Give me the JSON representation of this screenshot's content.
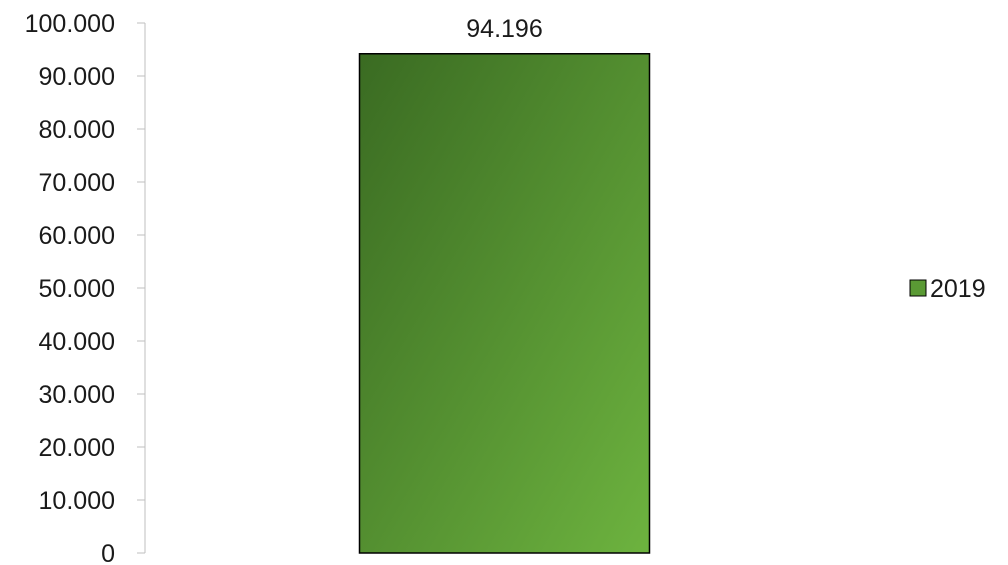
{
  "chart_data": {
    "type": "bar",
    "categories": [
      ""
    ],
    "series": [
      {
        "name": "2019",
        "values": [
          94196
        ],
        "color": "#5a9a34",
        "gradient_dark": "#3a6b22",
        "gradient_light": "#6db33f"
      }
    ],
    "data_labels": [
      "94.196"
    ],
    "ylim": [
      0,
      100000
    ],
    "yticks": [
      0,
      10000,
      20000,
      30000,
      40000,
      50000,
      60000,
      70000,
      80000,
      90000,
      100000
    ],
    "ytick_labels": [
      "0",
      "10.000",
      "20.000",
      "30.000",
      "40.000",
      "50.000",
      "60.000",
      "70.000",
      "80.000",
      "90.000",
      "100.000"
    ],
    "title": "",
    "xlabel": "",
    "ylabel": "",
    "grid": false,
    "legend": {
      "position": "right",
      "entries": [
        "2019"
      ]
    }
  }
}
